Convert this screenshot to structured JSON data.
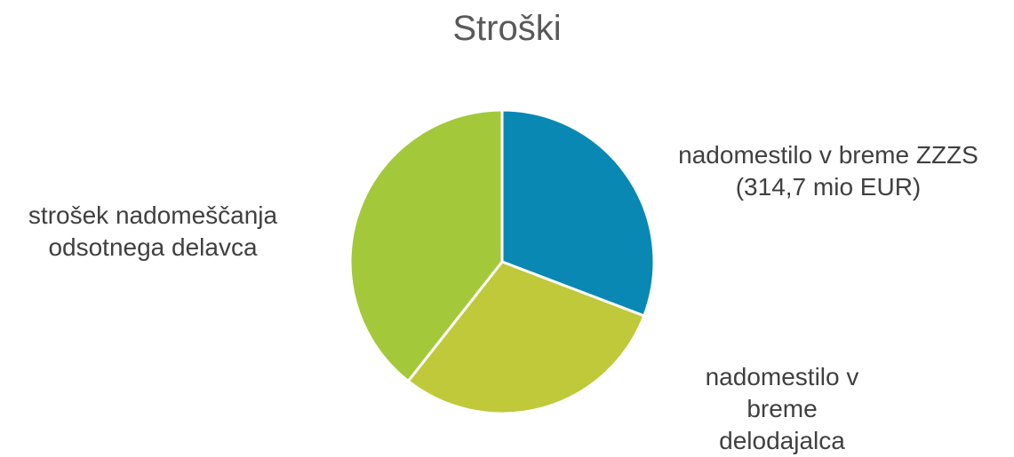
{
  "chart_data": {
    "type": "pie",
    "title": "Stroški",
    "categories": [
      "nadomestilo v breme ZZZS (314,7 mio EUR)",
      "nadomestilo v breme delodajalca",
      "strošek nadomeščanja odsotnega delavca"
    ],
    "values": [
      30.8,
      29.8,
      39.4
    ],
    "colors": [
      "#0a88b4",
      "#bfc93a",
      "#a3c93a"
    ]
  }
}
